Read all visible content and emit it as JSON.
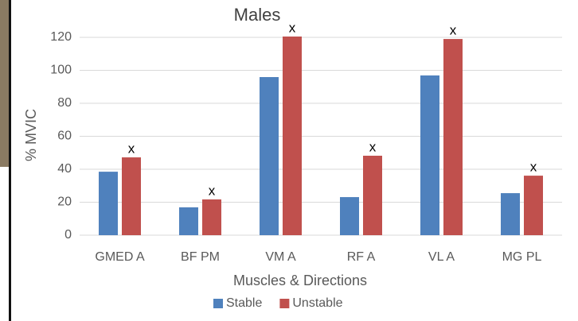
{
  "chart_data": {
    "type": "bar",
    "title": "Males",
    "y_label": "% MVIC",
    "x_label": "Muscles & Directions",
    "categories": [
      "GMED A",
      "BF PM",
      "VM A",
      "RF A",
      "VL A",
      "MG PL"
    ],
    "series": [
      {
        "name": "Stable",
        "color": "#4f81bd",
        "values": [
          38.5,
          16.9,
          95.9,
          23.1,
          96.9,
          25.5
        ]
      },
      {
        "name": "Unstable",
        "color": "#c0504d",
        "values": [
          47.2,
          21.7,
          120.5,
          48.2,
          119,
          36.1
        ]
      }
    ],
    "annotations": [
      "x",
      "x",
      "x",
      "x",
      "x",
      "x"
    ],
    "ylim": [
      0,
      120
    ],
    "yticks": [
      0,
      20,
      40,
      60,
      80,
      100,
      120
    ],
    "grid": true,
    "legend": "bottom"
  }
}
